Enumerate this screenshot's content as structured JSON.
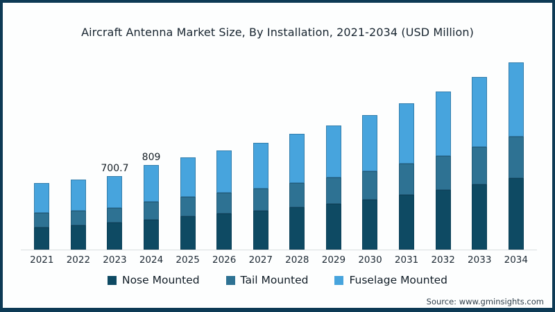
{
  "title": "Aircraft Antenna Market Size, By Installation, 2021-2034 (USD Million)",
  "source": "Source: www.gminsights.com",
  "colors": {
    "frame": "#0d3a55",
    "nose_mounted": "#0e4a63",
    "tail_mounted": "#2e7293",
    "fuselage_mounted": "#47a4dd",
    "axis_line": "#d9dedf",
    "text": "#17242f"
  },
  "legend": {
    "position": "bottom",
    "items": [
      {
        "label": "Nose Mounted",
        "color": "#0e4a63"
      },
      {
        "label": "Tail Mounted",
        "color": "#2e7293"
      },
      {
        "label": "Fuselage Mounted",
        "color": "#47a4dd"
      }
    ]
  },
  "chart_data": {
    "type": "bar",
    "stacked": true,
    "title": "Aircraft Antenna Market Size, By Installation, 2021-2034 (USD Million)",
    "xlabel": "",
    "ylabel": "USD Million",
    "categories": [
      "2021",
      "2022",
      "2023",
      "2024",
      "2025",
      "2026",
      "2027",
      "2028",
      "2029",
      "2030",
      "2031",
      "2032",
      "2033",
      "2034"
    ],
    "series": [
      {
        "name": "Nose Mounted",
        "color": "#0e4a63",
        "values": [
          213,
          228,
          255,
          286,
          314,
          341,
          370,
          402,
          432,
          474,
          518,
          565,
          620,
          682
        ]
      },
      {
        "name": "Tail Mounted",
        "color": "#2e7293",
        "values": [
          135,
          141,
          141,
          172,
          182,
          196,
          212,
          232,
          250,
          272,
          298,
          325,
          357,
          395
        ]
      },
      {
        "name": "Fuselage Mounted",
        "color": "#47a4dd",
        "values": [
          284,
          296,
          304.7,
          351,
          374,
          404,
          434,
          464,
          495,
          534,
          574,
          615,
          662,
          712
        ]
      }
    ],
    "totals": [
      632,
      665,
      700.7,
      809,
      870,
      941,
      1016,
      1098,
      1177,
      1280,
      1390,
      1505,
      1639,
      1789
    ],
    "data_labels": {
      "2023": "700.7",
      "2024": "809"
    },
    "ylim": [
      0,
      1900
    ],
    "grid": false,
    "legend_position": "bottom"
  }
}
